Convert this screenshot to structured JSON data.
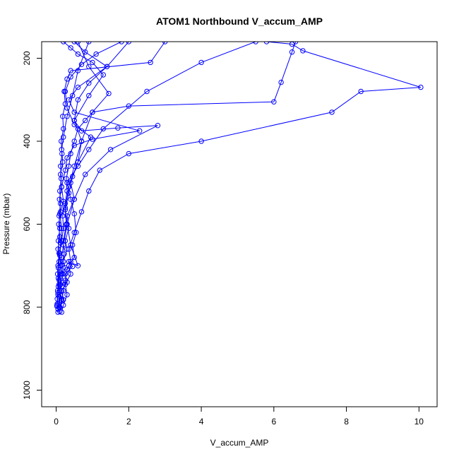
{
  "chart_data": {
    "type": "line",
    "title": "ATOM1 Northbound V_accum_AMP",
    "xlabel": "V_accum_AMP",
    "ylabel": "Pressure (mbar)",
    "xlim": [
      -0.4,
      10.5
    ],
    "ylim": [
      1040,
      160
    ],
    "y_reversed": true,
    "x_ticks": [
      "0",
      "2",
      "4",
      "6",
      "8",
      "10"
    ],
    "y_ticks": [
      "200",
      "400",
      "600",
      "800",
      "1000"
    ],
    "grid": false,
    "legend": "none",
    "marker": "open-circle",
    "series_color": "#0000ff",
    "series": [
      {
        "x": [
          0.05,
          0.1,
          0.15,
          0.1,
          0.2,
          0.15,
          0.25,
          0.2,
          0.3,
          0.25,
          0.35,
          0.3,
          0.5,
          0.4,
          0.6,
          0.7,
          0.5,
          0.6,
          0.9,
          1.4,
          2.0
        ],
        "y": [
          812,
          800,
          780,
          760,
          740,
          720,
          705,
          690,
          660,
          640,
          610,
          580,
          540,
          500,
          450,
          400,
          350,
          300,
          260,
          220,
          160
        ]
      },
      {
        "x": [
          0.02,
          0.05,
          0.08,
          0.1,
          0.12,
          0.1,
          0.15,
          0.2,
          0.18,
          0.25,
          0.3,
          0.28,
          0.35,
          0.4,
          0.5,
          0.6,
          0.8,
          1.0,
          2.0,
          6.0,
          6.2,
          6.5,
          6.6
        ],
        "y": [
          795,
          770,
          745,
          715,
          700,
          670,
          640,
          610,
          580,
          550,
          520,
          490,
          460,
          430,
          400,
          370,
          350,
          330,
          315,
          305,
          258,
          185,
          160
        ]
      },
      {
        "x": [
          0.1,
          0.15,
          0.2,
          0.25,
          0.3,
          0.4,
          0.35,
          0.5,
          0.7,
          0.9,
          1.2,
          2.0,
          4.0,
          7.6,
          8.4,
          10.05,
          6.8,
          6.5,
          5.8
        ],
        "y": [
          810,
          785,
          760,
          735,
          710,
          690,
          660,
          620,
          570,
          520,
          470,
          430,
          400,
          330,
          280,
          270,
          182,
          166,
          160
        ]
      },
      {
        "x": [
          0.05,
          0.08,
          0.12,
          0.1,
          0.15,
          0.2,
          0.3,
          0.5,
          0.8,
          1.5,
          2.8,
          1.7,
          0.7,
          0.5,
          0.9,
          1.3,
          1.0,
          0.6,
          0.4,
          0.2
        ],
        "y": [
          805,
          775,
          745,
          710,
          680,
          650,
          600,
          540,
          480,
          420,
          362,
          368,
          375,
          350,
          290,
          240,
          210,
          190,
          175,
          160
        ]
      },
      {
        "x": [
          0.03,
          0.05,
          0.08,
          0.06,
          0.1,
          0.12,
          0.15,
          0.1,
          0.2,
          0.15,
          0.25,
          0.3,
          0.5,
          1.0,
          2.3,
          0.5,
          0.35,
          0.6,
          1.4,
          0.8,
          0.5
        ],
        "y": [
          792,
          765,
          735,
          705,
          675,
          645,
          610,
          575,
          545,
          510,
          470,
          440,
          410,
          395,
          375,
          330,
          300,
          270,
          220,
          185,
          160
        ]
      },
      {
        "x": [
          0.08,
          0.12,
          0.1,
          0.18,
          0.15,
          0.22,
          0.2,
          0.28,
          0.25,
          0.35,
          0.45,
          0.6,
          0.95,
          0.5,
          0.3,
          0.25,
          0.4,
          0.7,
          1.1,
          1.8
        ],
        "y": [
          800,
          772,
          748,
          720,
          698,
          672,
          640,
          600,
          565,
          525,
          485,
          450,
          390,
          360,
          320,
          280,
          245,
          215,
          190,
          160
        ]
      },
      {
        "x": [
          0.02,
          0.04,
          0.06,
          0.05,
          0.08,
          0.06,
          0.1,
          0.08,
          0.12,
          0.1,
          0.14,
          0.12,
          0.16,
          0.14,
          0.2,
          0.18,
          0.25,
          0.22,
          0.3,
          0.4,
          2.6,
          3.0
        ],
        "y": [
          798,
          760,
          730,
          700,
          670,
          640,
          610,
          580,
          550,
          520,
          490,
          460,
          430,
          400,
          370,
          340,
          310,
          280,
          250,
          230,
          210,
          160
        ]
      },
      {
        "x": [
          0.15,
          0.2,
          0.3,
          0.25,
          0.4,
          0.35,
          0.5,
          0.45,
          0.55,
          0.5,
          0.4,
          0.3,
          0.6,
          0.9,
          1.3,
          2.5,
          4.0,
          5.5
        ],
        "y": [
          812,
          795,
          770,
          745,
          720,
          700,
          680,
          650,
          620,
          575,
          540,
          500,
          460,
          420,
          370,
          280,
          210,
          160
        ]
      },
      {
        "x": [
          0.03,
          0.06,
          0.04,
          0.08,
          0.05,
          0.1,
          0.07,
          0.12,
          0.09,
          0.15,
          0.12,
          0.18,
          0.15,
          0.2,
          0.3,
          0.45,
          0.6,
          0.9
        ],
        "y": [
          780,
          750,
          720,
          690,
          660,
          630,
          600,
          570,
          540,
          510,
          480,
          450,
          420,
          390,
          340,
          290,
          230,
          160
        ]
      },
      {
        "x": [
          0.1,
          0.2,
          0.15,
          0.3,
          0.25,
          0.45,
          0.35,
          0.6,
          0.4,
          0.3,
          0.25,
          0.35,
          0.5,
          0.7,
          1.0,
          1.45,
          0.9,
          0.6
        ],
        "y": [
          800,
          782,
          760,
          740,
          720,
          702,
          690,
          700,
          650,
          600,
          560,
          510,
          460,
          400,
          330,
          285,
          220,
          160
        ]
      }
    ]
  }
}
